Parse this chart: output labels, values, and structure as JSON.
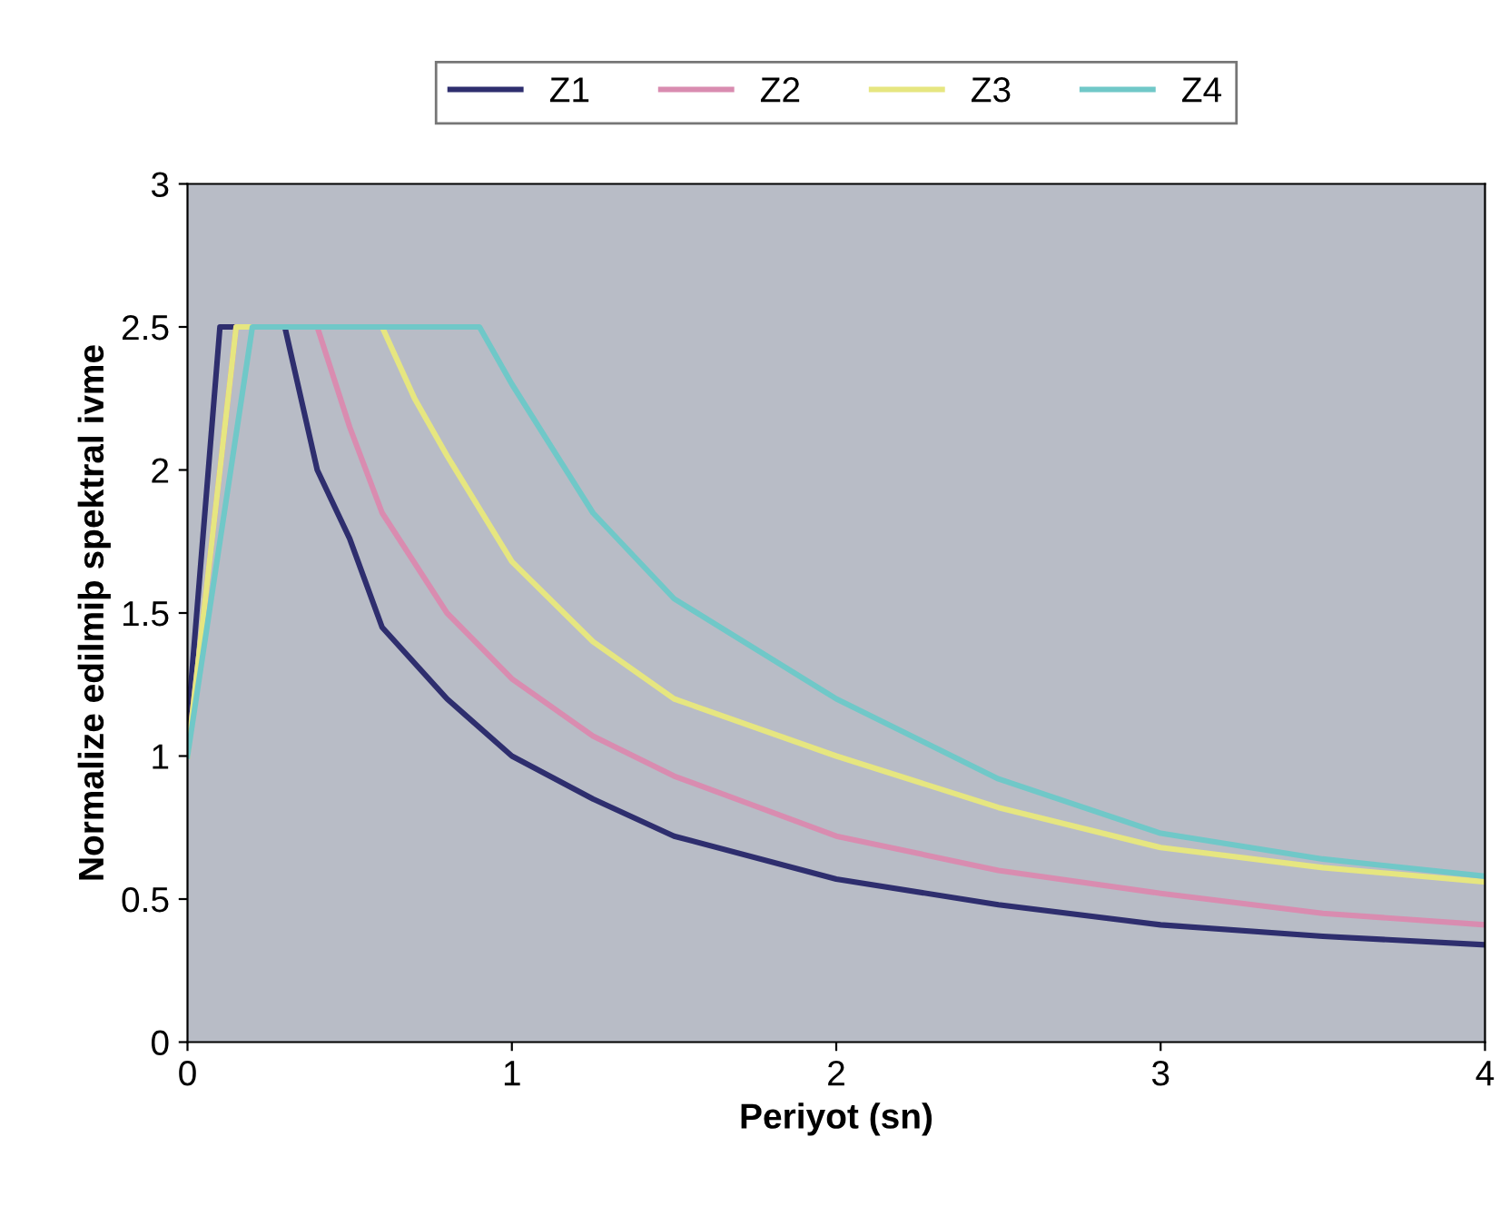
{
  "chart_data": {
    "type": "line",
    "xlabel": "Periyot (sn)",
    "ylabel": "Normalize edilmiþ spektral ivme",
    "xlim": [
      0,
      4
    ],
    "ylim": [
      0,
      3
    ],
    "xticks": [
      0,
      1,
      2,
      3,
      4
    ],
    "yticks": [
      0,
      0.5,
      1,
      1.5,
      2,
      2.5,
      3
    ],
    "grid": false,
    "legend": "top",
    "marker": "none",
    "line_style": "solid",
    "series": [
      {
        "name": "Z1",
        "color": "#2e2e6e",
        "x": [
          0,
          0.1,
          0.3,
          0.4,
          0.5,
          0.6,
          0.8,
          1.0,
          1.25,
          1.5,
          2.0,
          2.5,
          3.0,
          3.5,
          4.0
        ],
        "values": [
          1.1,
          2.5,
          2.5,
          2.0,
          1.76,
          1.45,
          1.2,
          1.0,
          0.85,
          0.72,
          0.57,
          0.48,
          0.41,
          0.37,
          0.34
        ]
      },
      {
        "name": "Z2",
        "color": "#d98cb0",
        "x": [
          0,
          0.15,
          0.4,
          0.5,
          0.6,
          0.8,
          1.0,
          1.25,
          1.5,
          2.0,
          2.5,
          3.0,
          3.5,
          4.0
        ],
        "values": [
          1.0,
          2.5,
          2.5,
          2.15,
          1.85,
          1.5,
          1.27,
          1.07,
          0.93,
          0.72,
          0.6,
          0.52,
          0.45,
          0.41
        ]
      },
      {
        "name": "Z3",
        "color": "#e6e680",
        "x": [
          0,
          0.15,
          0.6,
          0.7,
          0.8,
          1.0,
          1.25,
          1.5,
          2.0,
          2.5,
          3.0,
          3.5,
          4.0
        ],
        "values": [
          1.0,
          2.5,
          2.5,
          2.25,
          2.05,
          1.68,
          1.4,
          1.2,
          1.0,
          0.82,
          0.68,
          0.61,
          0.56
        ]
      },
      {
        "name": "Z4",
        "color": "#70c8c8",
        "x": [
          0,
          0.2,
          0.9,
          1.0,
          1.25,
          1.5,
          2.0,
          2.5,
          3.0,
          3.5,
          4.0
        ],
        "values": [
          1.0,
          2.5,
          2.5,
          2.3,
          1.85,
          1.55,
          1.2,
          0.92,
          0.73,
          0.64,
          0.58
        ]
      }
    ]
  }
}
